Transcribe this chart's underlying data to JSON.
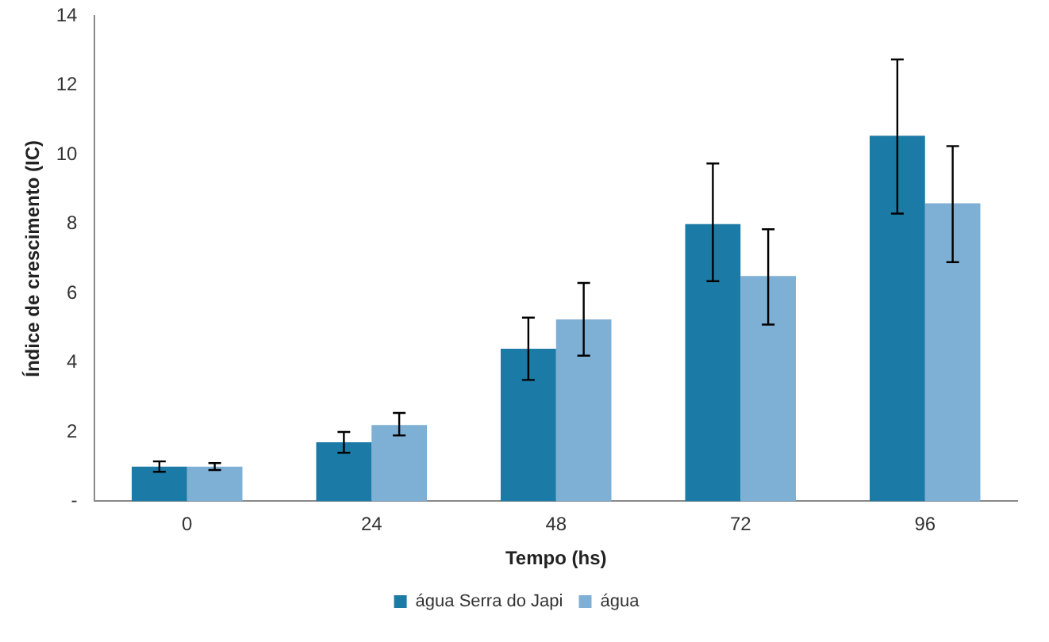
{
  "chart_data": {
    "type": "bar",
    "xlabel": "Tempo (hs)",
    "ylabel": "Índice de crescimento (IC)",
    "categories": [
      "0",
      "24",
      "48",
      "72",
      "96"
    ],
    "series": [
      {
        "name": "água Serra do Japi",
        "color": "#1b7aa6",
        "values": [
          1.0,
          1.7,
          4.4,
          8.0,
          10.55
        ],
        "errors": [
          [
            0.85,
            1.15
          ],
          [
            1.4,
            2.0
          ],
          [
            3.5,
            5.3
          ],
          [
            6.35,
            9.75
          ],
          [
            8.3,
            12.75
          ]
        ]
      },
      {
        "name": "água",
        "color": "#7eafd5",
        "values": [
          1.0,
          2.2,
          5.25,
          6.5,
          8.6
        ],
        "errors": [
          [
            0.9,
            1.1
          ],
          [
            1.9,
            2.55
          ],
          [
            4.2,
            6.3
          ],
          [
            5.1,
            7.85
          ],
          [
            6.9,
            10.25
          ]
        ]
      }
    ],
    "ylim": [
      0,
      14
    ],
    "yticks": [
      {
        "value": 0,
        "label": "-"
      },
      2,
      4,
      6,
      8,
      10,
      12,
      14
    ],
    "grid": false,
    "legend": "bottom"
  }
}
